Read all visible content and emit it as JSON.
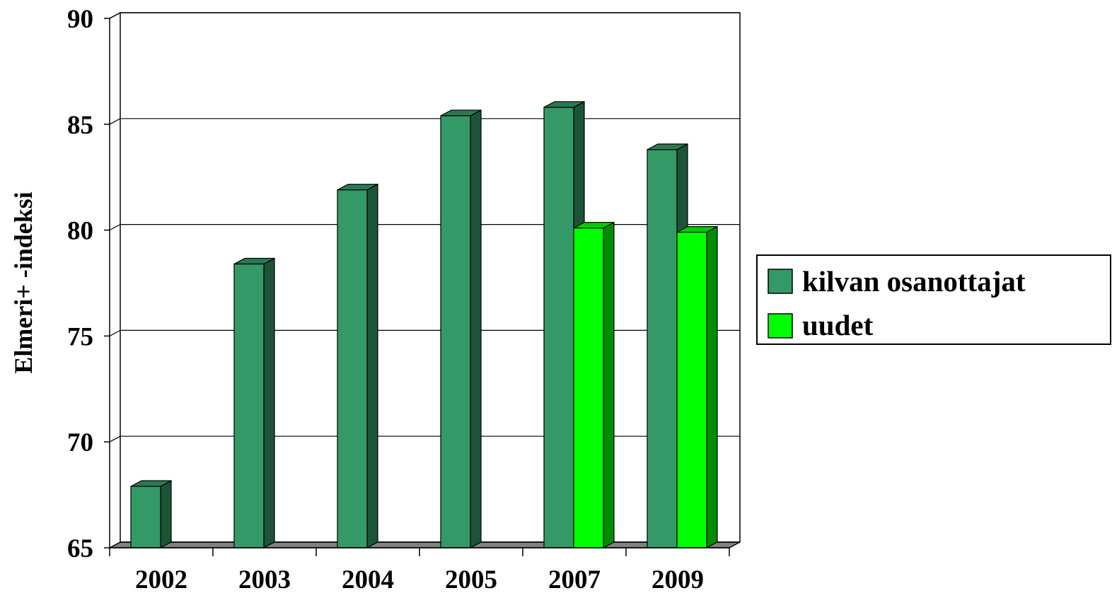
{
  "chart_data": {
    "type": "bar",
    "title": "",
    "xlabel": "",
    "ylabel": "Elmeri+ -indeksi",
    "ylim": [
      65,
      90
    ],
    "yticks": [
      65,
      70,
      75,
      80,
      85,
      90
    ],
    "categories": [
      "2002",
      "2003",
      "2004",
      "2005",
      "2007",
      "2009"
    ],
    "series": [
      {
        "name": "kilvan osanottajat",
        "color": "#339966",
        "values": [
          67.9,
          78.4,
          81.9,
          85.4,
          85.8,
          83.8
        ]
      },
      {
        "name": "uudet",
        "color": "#00ff00",
        "values": [
          null,
          null,
          null,
          null,
          80.1,
          79.9
        ]
      }
    ],
    "grid": true,
    "legend": "right",
    "style": "3d-bar"
  }
}
